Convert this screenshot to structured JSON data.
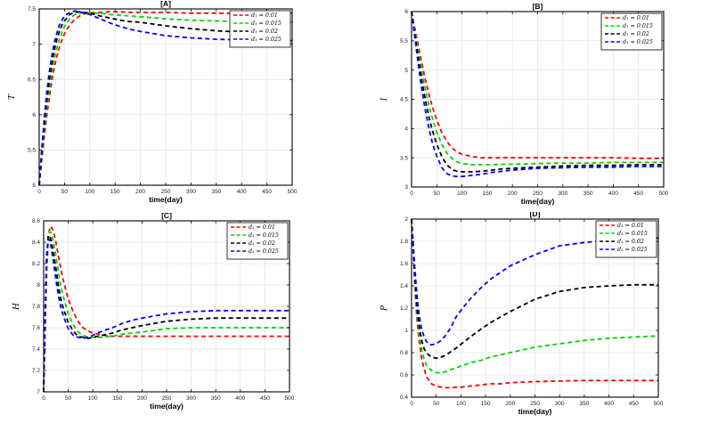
{
  "figure": {
    "background": "#ffffff",
    "grid_color": "#e4e4e4",
    "axis_color": "#000000",
    "tick_label_color": "#222222"
  },
  "chart_data": [
    {
      "id": "A",
      "type": "line",
      "title": "[A]",
      "xlabel": "time(day)",
      "ylabel": "T",
      "xlim": [
        0,
        500
      ],
      "ylim": [
        5,
        7.5
      ],
      "xticks": [
        0,
        50,
        100,
        150,
        200,
        250,
        300,
        350,
        400,
        450,
        500
      ],
      "xtick_labels": [
        "0",
        "50",
        "100",
        "150",
        "200",
        "250",
        "300",
        "350",
        "400",
        "450",
        "500"
      ],
      "yticks": [
        5,
        5.5,
        6,
        6.5,
        7,
        7.5
      ],
      "ytick_labels": [
        "5",
        "5.5",
        "6",
        "6.5",
        "7",
        "7.5"
      ],
      "grid": true,
      "legend_position": "top-right",
      "x": [
        0,
        5,
        10,
        15,
        20,
        25,
        30,
        35,
        40,
        45,
        50,
        60,
        70,
        80,
        90,
        100,
        110,
        120,
        140,
        160,
        180,
        200,
        250,
        300,
        350,
        400,
        450,
        500
      ],
      "series": [
        {
          "name": "d₁ = 0.01",
          "color": "#ff0000",
          "linestyle": "dashed",
          "y": [
            5.0,
            5.35,
            5.68,
            5.98,
            6.25,
            6.48,
            6.67,
            6.83,
            6.96,
            7.06,
            7.15,
            7.27,
            7.35,
            7.4,
            7.43,
            7.44,
            7.45,
            7.45,
            7.46,
            7.46,
            7.45,
            7.45,
            7.45,
            7.44,
            7.44,
            7.44,
            7.44,
            7.44
          ]
        },
        {
          "name": "d₁ = 0.015",
          "color": "#00d400",
          "linestyle": "dashed",
          "y": [
            5.0,
            5.4,
            5.77,
            6.1,
            6.38,
            6.61,
            6.8,
            6.95,
            7.07,
            7.17,
            7.25,
            7.36,
            7.42,
            7.44,
            7.45,
            7.45,
            7.44,
            7.44,
            7.42,
            7.41,
            7.4,
            7.39,
            7.36,
            7.34,
            7.33,
            7.32,
            7.31,
            7.31
          ]
        },
        {
          "name": "d₁ = 0.02",
          "color": "#000000",
          "linestyle": "dashed",
          "y": [
            5.0,
            5.45,
            5.86,
            6.21,
            6.5,
            6.73,
            6.92,
            7.07,
            7.18,
            7.27,
            7.33,
            7.42,
            7.45,
            7.46,
            7.45,
            7.44,
            7.42,
            7.4,
            7.37,
            7.34,
            7.32,
            7.31,
            7.26,
            7.22,
            7.19,
            7.17,
            7.16,
            7.16
          ]
        },
        {
          "name": "d₁ = 0.025",
          "color": "#0000ff",
          "linestyle": "dashed",
          "y": [
            5.0,
            5.5,
            5.95,
            6.32,
            6.61,
            6.84,
            7.02,
            7.16,
            7.27,
            7.34,
            7.4,
            7.45,
            7.47,
            7.46,
            7.44,
            7.42,
            7.39,
            7.36,
            7.3,
            7.25,
            7.21,
            7.18,
            7.12,
            7.09,
            7.07,
            7.06,
            7.05,
            7.05
          ]
        }
      ]
    },
    {
      "id": "B",
      "type": "line",
      "title": "[B]",
      "xlabel": "time(day)",
      "ylabel": "I",
      "xlim": [
        0,
        500
      ],
      "ylim": [
        3,
        6
      ],
      "xticks": [
        0,
        50,
        100,
        150,
        200,
        250,
        300,
        350,
        400,
        450,
        500
      ],
      "xtick_labels": [
        "0",
        "50",
        "100",
        "150",
        "200",
        "250",
        "300",
        "350",
        "400",
        "450",
        "500"
      ],
      "yticks": [
        3,
        3.5,
        4,
        4.5,
        5,
        5.5,
        6
      ],
      "ytick_labels": [
        "3",
        "3.5",
        "4",
        "4.5",
        "5",
        "5.5",
        "6"
      ],
      "grid": true,
      "legend_position": "top-right",
      "x": [
        0,
        5,
        10,
        15,
        20,
        25,
        30,
        35,
        40,
        45,
        50,
        60,
        70,
        80,
        90,
        100,
        120,
        140,
        160,
        180,
        200,
        250,
        300,
        350,
        400,
        450,
        500
      ],
      "series": [
        {
          "name": "d₁ = 0.01",
          "color": "#ff0000",
          "linestyle": "dashed",
          "y": [
            6.0,
            5.78,
            5.56,
            5.34,
            5.13,
            4.93,
            4.74,
            4.57,
            4.41,
            4.27,
            4.14,
            3.93,
            3.78,
            3.67,
            3.6,
            3.56,
            3.52,
            3.5,
            3.5,
            3.5,
            3.5,
            3.5,
            3.5,
            3.5,
            3.5,
            3.49,
            3.49
          ]
        },
        {
          "name": "d₁ = 0.015",
          "color": "#00d400",
          "linestyle": "dashed",
          "y": [
            6.0,
            5.74,
            5.48,
            5.23,
            4.99,
            4.77,
            4.57,
            4.38,
            4.22,
            4.07,
            3.94,
            3.73,
            3.58,
            3.49,
            3.43,
            3.4,
            3.38,
            3.38,
            3.38,
            3.39,
            3.39,
            3.4,
            3.41,
            3.41,
            3.42,
            3.42,
            3.42
          ]
        },
        {
          "name": "d₁ = 0.02",
          "color": "#000000",
          "linestyle": "dashed",
          "y": [
            6.0,
            5.7,
            5.4,
            5.11,
            4.84,
            4.6,
            4.38,
            4.18,
            4.01,
            3.86,
            3.73,
            3.52,
            3.38,
            3.3,
            3.27,
            3.26,
            3.26,
            3.27,
            3.29,
            3.31,
            3.32,
            3.34,
            3.36,
            3.37,
            3.37,
            3.38,
            3.38
          ]
        },
        {
          "name": "d₁ = 0.025",
          "color": "#0000ff",
          "linestyle": "dashed",
          "y": [
            6.0,
            5.66,
            5.32,
            4.99,
            4.69,
            4.42,
            4.19,
            3.98,
            3.8,
            3.65,
            3.53,
            3.33,
            3.23,
            3.19,
            3.18,
            3.18,
            3.2,
            3.22,
            3.25,
            3.27,
            3.29,
            3.32,
            3.33,
            3.34,
            3.34,
            3.35,
            3.35
          ]
        }
      ]
    },
    {
      "id": "C",
      "type": "line",
      "title": "[C]",
      "xlabel": "time(day)",
      "ylabel": "H",
      "xlim": [
        0,
        500
      ],
      "ylim": [
        7,
        8.6
      ],
      "xticks": [
        0,
        50,
        100,
        150,
        200,
        250,
        300,
        350,
        400,
        450,
        500
      ],
      "xtick_labels": [
        "0",
        "50",
        "100",
        "150",
        "200",
        "250",
        "300",
        "350",
        "400",
        "450",
        "500"
      ],
      "yticks": [
        7,
        7.2,
        7.4,
        7.6,
        7.8,
        8,
        8.2,
        8.4,
        8.6
      ],
      "ytick_labels": [
        "7",
        "7.2",
        "7.4",
        "7.6",
        "7.8",
        "8",
        "8.2",
        "8.4",
        "8.6"
      ],
      "grid": true,
      "legend_position": "top-right",
      "x": [
        0,
        3,
        6,
        9,
        12,
        15,
        20,
        25,
        30,
        35,
        40,
        50,
        60,
        70,
        80,
        90,
        100,
        110,
        120,
        140,
        160,
        180,
        200,
        250,
        300,
        350,
        400,
        450,
        500
      ],
      "series": [
        {
          "name": "d₁ = 0.01",
          "color": "#ff0000",
          "linestyle": "dashed",
          "y": [
            7.0,
            7.6,
            8.1,
            8.4,
            8.52,
            8.55,
            8.5,
            8.4,
            8.27,
            8.15,
            8.04,
            7.87,
            7.75,
            7.66,
            7.6,
            7.57,
            7.55,
            7.54,
            7.53,
            7.52,
            7.52,
            7.52,
            7.52,
            7.52,
            7.52,
            7.52,
            7.52,
            7.52,
            7.52
          ]
        },
        {
          "name": "d₁ = 0.015",
          "color": "#00d400",
          "linestyle": "dashed",
          "y": [
            7.0,
            7.65,
            8.16,
            8.45,
            8.5,
            8.49,
            8.4,
            8.27,
            8.12,
            7.99,
            7.89,
            7.73,
            7.63,
            7.56,
            7.53,
            7.51,
            7.51,
            7.51,
            7.51,
            7.52,
            7.54,
            7.55,
            7.56,
            7.59,
            7.6,
            7.6,
            7.6,
            7.6,
            7.6
          ]
        },
        {
          "name": "d₁ = 0.02",
          "color": "#000000",
          "linestyle": "dashed",
          "y": [
            7.0,
            7.7,
            8.22,
            8.46,
            8.46,
            8.42,
            8.3,
            8.15,
            7.99,
            7.87,
            7.78,
            7.65,
            7.57,
            7.52,
            7.51,
            7.5,
            7.51,
            7.52,
            7.53,
            7.55,
            7.58,
            7.6,
            7.62,
            7.66,
            7.68,
            7.69,
            7.69,
            7.69,
            7.69
          ]
        },
        {
          "name": "d₁ = 0.025",
          "color": "#0000ff",
          "linestyle": "dashed",
          "y": [
            7.0,
            7.75,
            8.28,
            8.43,
            8.42,
            8.36,
            8.22,
            8.05,
            7.9,
            7.79,
            7.71,
            7.59,
            7.53,
            7.51,
            7.5,
            7.51,
            7.53,
            7.55,
            7.57,
            7.6,
            7.64,
            7.67,
            7.69,
            7.73,
            7.75,
            7.76,
            7.76,
            7.76,
            7.76
          ]
        }
      ]
    },
    {
      "id": "D",
      "type": "line",
      "title": "[D]",
      "xlabel": "time(day)",
      "ylabel": "P",
      "xlim": [
        0,
        500
      ],
      "ylim": [
        0.4,
        2
      ],
      "xticks": [
        0,
        50,
        100,
        150,
        200,
        250,
        300,
        350,
        400,
        450,
        500
      ],
      "xtick_labels": [
        "0",
        "50",
        "100",
        "150",
        "200",
        "250",
        "300",
        "350",
        "400",
        "450",
        "500"
      ],
      "yticks": [
        0.4,
        0.6,
        0.8,
        1,
        1.2,
        1.4,
        1.6,
        1.8,
        2
      ],
      "ytick_labels": [
        "0.4",
        "0.6",
        "0.8",
        "1",
        "1.2",
        "1.4",
        "1.6",
        "1.8",
        "2"
      ],
      "grid": true,
      "legend_position": "top-right",
      "x": [
        0,
        3,
        6,
        9,
        12,
        15,
        20,
        25,
        30,
        35,
        40,
        50,
        60,
        70,
        80,
        90,
        100,
        120,
        140,
        160,
        180,
        200,
        250,
        300,
        350,
        400,
        450,
        500
      ],
      "series": [
        {
          "name": "d₁ = 0.01",
          "color": "#ff0000",
          "linestyle": "dashed",
          "y": [
            2.0,
            1.72,
            1.45,
            1.22,
            1.05,
            0.92,
            0.76,
            0.66,
            0.59,
            0.55,
            0.52,
            0.5,
            0.49,
            0.485,
            0.485,
            0.49,
            0.49,
            0.5,
            0.51,
            0.52,
            0.52,
            0.53,
            0.54,
            0.545,
            0.55,
            0.55,
            0.55,
            0.55
          ]
        },
        {
          "name": "d₁ = 0.015",
          "color": "#00d400",
          "linestyle": "dashed",
          "y": [
            2.0,
            1.75,
            1.5,
            1.28,
            1.11,
            0.98,
            0.84,
            0.75,
            0.69,
            0.66,
            0.64,
            0.62,
            0.62,
            0.63,
            0.65,
            0.66,
            0.68,
            0.71,
            0.73,
            0.76,
            0.78,
            0.8,
            0.85,
            0.88,
            0.91,
            0.93,
            0.94,
            0.95
          ]
        },
        {
          "name": "d₁ = 0.02",
          "color": "#000000",
          "linestyle": "dashed",
          "y": [
            2.0,
            1.77,
            1.54,
            1.33,
            1.17,
            1.05,
            0.92,
            0.84,
            0.8,
            0.78,
            0.76,
            0.75,
            0.76,
            0.78,
            0.81,
            0.84,
            0.875,
            0.945,
            1.01,
            1.07,
            1.12,
            1.17,
            1.28,
            1.35,
            1.385,
            1.4,
            1.41,
            1.41
          ]
        },
        {
          "name": "d₁ = 0.025",
          "color": "#0000ff",
          "linestyle": "dashed",
          "y": [
            2.0,
            1.8,
            1.6,
            1.42,
            1.27,
            1.15,
            1.02,
            0.95,
            0.9,
            0.88,
            0.87,
            0.88,
            0.91,
            0.96,
            1.03,
            1.12,
            1.18,
            1.29,
            1.38,
            1.46,
            1.52,
            1.58,
            1.68,
            1.76,
            1.79,
            1.81,
            1.82,
            1.83
          ]
        }
      ]
    }
  ]
}
